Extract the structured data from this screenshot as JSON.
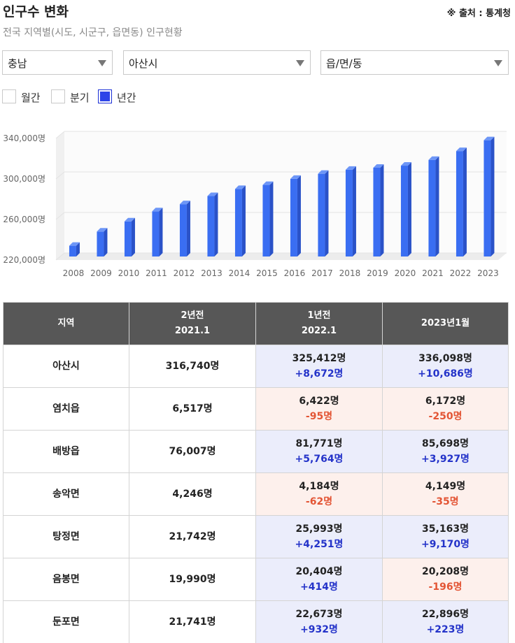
{
  "header": {
    "title": "인구수 변화",
    "source": "※ 출처 : 통계청",
    "subtitle": "전국 지역별(시도, 시군구, 읍면동) 인구현황"
  },
  "filters": {
    "province": "충남",
    "city": "아산시",
    "town": "읍/면/동"
  },
  "periods": [
    {
      "label": "월간",
      "checked": false
    },
    {
      "label": "분기",
      "checked": false
    },
    {
      "label": "년간",
      "checked": true
    }
  ],
  "colors": {
    "bar_front": "#3a6ef2",
    "bar_side": "#2a52c8",
    "bar_top": "#6d96f7",
    "increase": "#2433c9",
    "decrease": "#e35535"
  },
  "chart_data": {
    "type": "bar",
    "categories": [
      "2008",
      "2009",
      "2010",
      "2011",
      "2012",
      "2013",
      "2014",
      "2015",
      "2016",
      "2017",
      "2018",
      "2019",
      "2020",
      "2021",
      "2022",
      "2023"
    ],
    "values": [
      232000,
      246000,
      256000,
      266000,
      273000,
      281000,
      288000,
      292000,
      298000,
      303000,
      307000,
      309000,
      311000,
      316740,
      325412,
      336098
    ],
    "ylim": [
      220000,
      340000
    ],
    "yticks": [
      220000,
      260000,
      300000,
      340000
    ],
    "ytick_labels": [
      "220,000명",
      "260,000명",
      "300,000명",
      "340,000명"
    ],
    "grid": true
  },
  "table": {
    "headers": [
      {
        "line1": "지역",
        "line2": ""
      },
      {
        "line1": "2년전",
        "line2": "2021.1"
      },
      {
        "line1": "1년전",
        "line2": "2022.1"
      },
      {
        "line1": "2023년1월",
        "line2": ""
      }
    ],
    "rows": [
      {
        "region": "아산시",
        "y2021": "316,740명",
        "y2022": "325,412명",
        "y2022_change": "+8,672명",
        "y2022_dir": "up",
        "y2023": "336,098명",
        "y2023_change": "+10,686명",
        "y2023_dir": "up"
      },
      {
        "region": "염치읍",
        "y2021": "6,517명",
        "y2022": "6,422명",
        "y2022_change": "-95명",
        "y2022_dir": "down",
        "y2023": "6,172명",
        "y2023_change": "-250명",
        "y2023_dir": "down"
      },
      {
        "region": "배방읍",
        "y2021": "76,007명",
        "y2022": "81,771명",
        "y2022_change": "+5,764명",
        "y2022_dir": "up",
        "y2023": "85,698명",
        "y2023_change": "+3,927명",
        "y2023_dir": "up"
      },
      {
        "region": "송악면",
        "y2021": "4,246명",
        "y2022": "4,184명",
        "y2022_change": "-62명",
        "y2022_dir": "down",
        "y2023": "4,149명",
        "y2023_change": "-35명",
        "y2023_dir": "down"
      },
      {
        "region": "탕정면",
        "y2021": "21,742명",
        "y2022": "25,993명",
        "y2022_change": "+4,251명",
        "y2022_dir": "up",
        "y2023": "35,163명",
        "y2023_change": "+9,170명",
        "y2023_dir": "up"
      },
      {
        "region": "음봉면",
        "y2021": "19,990명",
        "y2022": "20,404명",
        "y2022_change": "+414명",
        "y2022_dir": "up",
        "y2023": "20,208명",
        "y2023_change": "-196명",
        "y2023_dir": "down"
      },
      {
        "region": "둔포면",
        "y2021": "21,741명",
        "y2022": "22,673명",
        "y2022_change": "+932명",
        "y2022_dir": "up",
        "y2023": "22,896명",
        "y2023_change": "+223명",
        "y2023_dir": "up"
      }
    ]
  }
}
